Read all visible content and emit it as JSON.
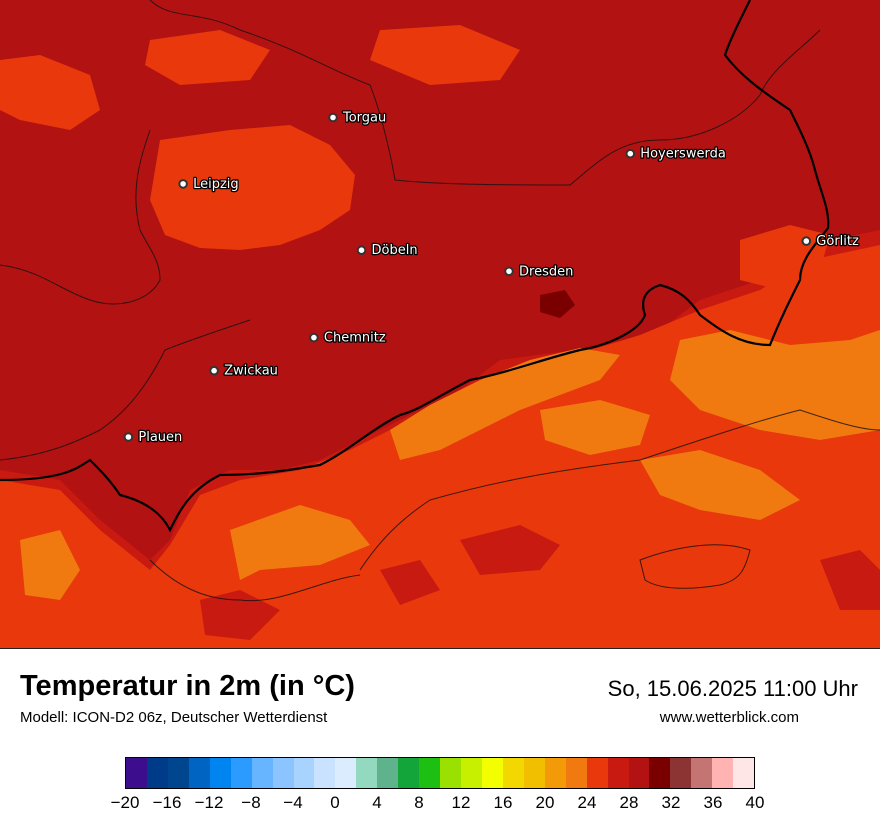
{
  "title": "Temperatur in 2m (in °C)",
  "subtitle": "Modell: ICON-D2 06z, Deutscher Wetterdienst",
  "datetime": "So, 15.06.2025 11:00 Uhr",
  "website": "www.wetterblick.com",
  "cities": [
    {
      "name": "Torgau",
      "lon": 13.0,
      "lat": 51.56
    },
    {
      "name": "Hoyerswerda",
      "lon": 14.25,
      "lat": 51.44
    },
    {
      "name": "Leipzig",
      "lon": 12.37,
      "lat": 51.34
    },
    {
      "name": "Döbeln",
      "lon": 13.12,
      "lat": 51.12
    },
    {
      "name": "Dresden",
      "lon": 13.74,
      "lat": 51.05
    },
    {
      "name": "Görlitz",
      "lon": 14.99,
      "lat": 51.15
    },
    {
      "name": "Chemnitz",
      "lon": 12.92,
      "lat": 50.83
    },
    {
      "name": "Zwickau",
      "lon": 12.5,
      "lat": 50.72
    },
    {
      "name": "Plauen",
      "lon": 12.14,
      "lat": 50.5
    }
  ],
  "map_extent": {
    "lon_min": 11.6,
    "lon_max": 15.3,
    "lat_min": 49.8,
    "lat_max": 51.95
  },
  "legend": {
    "unit": "°C",
    "min": -20,
    "max": 40,
    "step": 2,
    "colors": [
      "#3c0d8c",
      "#003b8a",
      "#00468f",
      "#0064c2",
      "#0084f0",
      "#2c9bff",
      "#68b5ff",
      "#8cc4ff",
      "#a9d3ff",
      "#c8e2ff",
      "#dcecff",
      "#93d9bf",
      "#5fb38c",
      "#13a43a",
      "#1dbf12",
      "#9ae000",
      "#c7ef00",
      "#f3ff00",
      "#f2d700",
      "#f2bf00",
      "#f39a09",
      "#f07a10",
      "#e8380c",
      "#c81a10",
      "#b21212",
      "#7a0000",
      "#8c3434",
      "#c57474",
      "#ffb3b3",
      "#ffe6e6"
    ],
    "tick_labels": [
      "−20",
      "−16",
      "−12",
      "−8",
      "−4",
      "0",
      "4",
      "8",
      "12",
      "16",
      "20",
      "24",
      "28",
      "32",
      "36",
      "40"
    ]
  },
  "map_colors": {
    "t28_30": "#b21212",
    "t26_28": "#c81a10",
    "t24_26": "#e8380c",
    "t22_24": "#f07a10",
    "t30_32": "#7a0000",
    "border": "#000000"
  }
}
